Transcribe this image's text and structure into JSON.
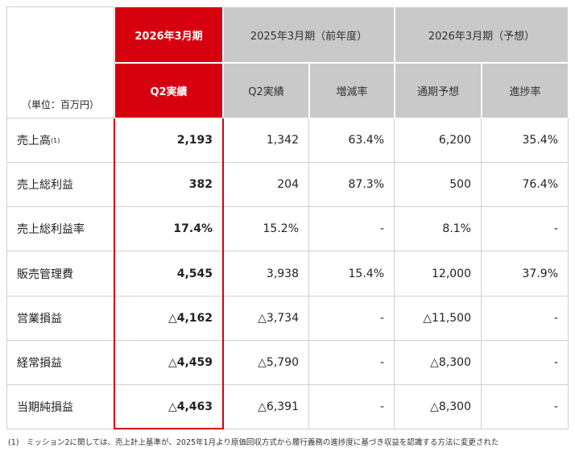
{
  "table": {
    "unit": "（単位：百万円）",
    "groups": [
      {
        "title": "2026年3月期",
        "columns": [
          "Q2実績"
        ]
      },
      {
        "title": "2025年3月期（前年度）",
        "columns": [
          "Q2実績",
          "増減率"
        ]
      },
      {
        "title": "2026年3月期（予想）",
        "columns": [
          "通期予想",
          "進捗率"
        ]
      }
    ],
    "rows": [
      {
        "label": "売上高",
        "note": "(1)",
        "cells": [
          "2,193",
          "1,342",
          "63.4%",
          "6,200",
          "35.4%"
        ]
      },
      {
        "label": "売上総利益",
        "cells": [
          "382",
          "204",
          "87.3%",
          "500",
          "76.4%"
        ]
      },
      {
        "label": "売上総利益率",
        "cells": [
          "17.4%",
          "15.2%",
          "-",
          "8.1%",
          "-"
        ]
      },
      {
        "label": "販売管理費",
        "cells": [
          "4,545",
          "3,938",
          "15.4%",
          "12,000",
          "37.9%"
        ]
      },
      {
        "label": "営業損益",
        "cells": [
          "△4,162",
          "△3,734",
          "-",
          "△11,500",
          "-"
        ]
      },
      {
        "label": "経常損益",
        "cells": [
          "△4,459",
          "△5,790",
          "-",
          "△8,300",
          "-"
        ]
      },
      {
        "label": "当期純損益",
        "cells": [
          "△4,463",
          "△6,391",
          "-",
          "△8,300",
          "-"
        ]
      }
    ]
  },
  "footnote": {
    "marker": "(1)",
    "text": "ミッション2に関しては、売上計上基準が、2025年1月より原価回収方式から履行義務の進捗度に基づき収益を認識する方法に変更された"
  }
}
